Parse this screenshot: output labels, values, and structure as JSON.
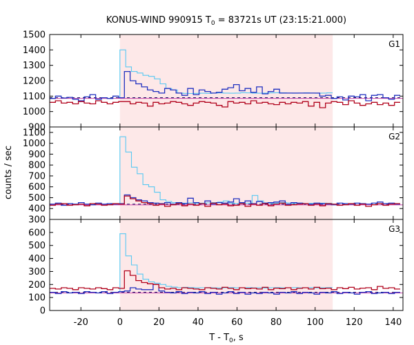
{
  "page": {
    "title_main": "KONUS-WIND 990915 T",
    "title_sub": "0",
    "title_rest": " = 83721s UT (23:15:21.000)"
  },
  "colors": {
    "shade": "#fde8e8",
    "cyan": "#57c8f2",
    "blue": "#1f2fbf",
    "red": "#b0001a",
    "magenta": "#cc44aa",
    "navy": "#1a1a66",
    "axis": "#000000"
  },
  "chart_data": {
    "type": "line",
    "title": "KONUS-WIND 990915 T0 = 83721s UT (23:15:21.000)",
    "xlabel": "T - T0, s",
    "xlabel_parts": {
      "main": "T - T",
      "sub": "0",
      "rest": ", s"
    },
    "ylabel": "counts / sec",
    "xlim": [
      -36,
      145
    ],
    "xticks": [
      -20,
      0,
      20,
      40,
      60,
      80,
      100,
      120,
      140
    ],
    "shaded_interval": [
      0,
      109
    ],
    "panels": [
      {
        "name": "G1",
        "ylim": [
          900,
          1500
        ],
        "yticks": [
          900,
          1000,
          1100,
          1200,
          1300,
          1400,
          1500
        ],
        "background_level": 1090,
        "series": [
          {
            "name": "cyan (high-res)",
            "color": "cyan",
            "x_start": 0,
            "bin": 2.944,
            "values": [
              1400,
              1290,
              1260,
              1250,
              1235,
              1228,
              1212,
              1180,
              1150,
              1140,
              1120,
              1118,
              1117,
              1118,
              1119,
              1118,
              1120,
              1121,
              1120,
              1119,
              1120,
              1122,
              1121,
              1120,
              1119,
              1120,
              1121,
              1122,
              1121,
              1120,
              1119,
              1120,
              1121,
              1120,
              1119,
              1120,
              1121
            ]
          },
          {
            "name": "blue",
            "color": "blue",
            "x_start": -36,
            "bin": 2.944,
            "values": [
              1085,
              1100,
              1088,
              1092,
              1080,
              1070,
              1095,
              1110,
              1080,
              1090,
              1085,
              1100,
              1090,
              1260,
              1200,
              1180,
              1160,
              1140,
              1130,
              1120,
              1150,
              1140,
              1120,
              1105,
              1150,
              1110,
              1140,
              1130,
              1120,
              1125,
              1145,
              1155,
              1175,
              1135,
              1150,
              1125,
              1160,
              1115,
              1130,
              1145,
              1120,
              1120,
              1120,
              1120,
              1120,
              1120,
              1120,
              1100,
              1105,
              1085,
              1095,
              1075,
              1100,
              1095,
              1110,
              1070,
              1105,
              1110,
              1090,
              1080,
              1105
            ]
          },
          {
            "name": "red",
            "color": "red",
            "x_start": -36,
            "bin": 2.944,
            "values": [
              1060,
              1070,
              1055,
              1060,
              1050,
              1065,
              1055,
              1050,
              1070,
              1060,
              1050,
              1060,
              1065,
              1065,
              1050,
              1060,
              1055,
              1035,
              1060,
              1050,
              1055,
              1065,
              1060,
              1050,
              1040,
              1055,
              1065,
              1060,
              1055,
              1040,
              1030,
              1065,
              1055,
              1060,
              1050,
              1070,
              1055,
              1060,
              1050,
              1045,
              1060,
              1050,
              1060,
              1055,
              1065,
              1035,
              1060,
              1025,
              1055,
              1065,
              1060,
              1045,
              1070,
              1055,
              1040,
              1050,
              1060,
              1045,
              1055,
              1040,
              1060
            ]
          }
        ]
      },
      {
        "name": "G2",
        "ylim": [
          300,
          1150
        ],
        "yticks": [
          300,
          400,
          500,
          600,
          700,
          800,
          900,
          1000,
          1100
        ],
        "background_level": 440,
        "series": [
          {
            "name": "cyan (high-res)",
            "color": "cyan",
            "x_start": 0,
            "bin": 2.944,
            "values": [
              1060,
              920,
              780,
              720,
              620,
              600,
              550,
              480,
              465,
              455,
              450,
              450,
              452,
              448,
              450,
              452,
              455,
              460,
              470,
              450,
              445,
              448,
              450,
              520,
              470,
              452,
              448,
              450,
              455,
              452,
              448,
              450,
              445,
              448,
              450,
              450,
              448
            ]
          },
          {
            "name": "blue",
            "color": "blue",
            "x_start": -36,
            "bin": 2.944,
            "values": [
              440,
              450,
              430,
              445,
              440,
              455,
              440,
              435,
              450,
              440,
              445,
              440,
              445,
              525,
              500,
              480,
              470,
              455,
              450,
              445,
              455,
              440,
              455,
              445,
              495,
              455,
              445,
              470,
              440,
              455,
              450,
              460,
              490,
              455,
              470,
              445,
              465,
              450,
              455,
              460,
              470,
              440,
              455,
              450,
              445,
              440,
              450,
              445,
              440,
              435,
              450,
              445,
              440,
              450,
              445,
              440,
              450,
              460,
              445,
              450,
              440
            ]
          },
          {
            "name": "red",
            "color": "red",
            "x_start": -36,
            "bin": 2.944,
            "values": [
              430,
              440,
              445,
              430,
              435,
              440,
              425,
              445,
              440,
              430,
              435,
              445,
              440,
              515,
              490,
              470,
              455,
              445,
              430,
              440,
              420,
              435,
              445,
              425,
              440,
              430,
              445,
              420,
              450,
              435,
              440,
              425,
              430,
              445,
              420,
              440,
              430,
              445,
              425,
              440,
              450,
              430,
              435,
              440,
              445,
              430,
              440,
              425,
              445,
              440,
              430,
              435,
              445,
              430,
              440,
              420,
              435,
              445,
              430,
              440,
              445
            ]
          }
        ]
      },
      {
        "name": "G3",
        "ylim": [
          0,
          700
        ],
        "yticks": [
          0,
          100,
          200,
          300,
          400,
          500,
          600
        ],
        "background_level": 140,
        "series": [
          {
            "name": "cyan (high-res)",
            "color": "cyan",
            "x_start": 0,
            "bin": 2.944,
            "values": [
              590,
              420,
              350,
              280,
              240,
              220,
              210,
              200,
              185,
              180,
              175,
              178,
              176,
              174,
              175,
              176,
              174,
              173,
              175,
              176,
              174,
              175,
              176,
              174,
              175,
              173,
              175,
              176,
              174,
              175,
              176,
              174,
              175,
              176,
              174,
              175,
              176
            ]
          },
          {
            "name": "blue",
            "color": "blue",
            "x_start": -36,
            "bin": 2.944,
            "values": [
              140,
              130,
              145,
              135,
              140,
              130,
              145,
              140,
              135,
              145,
              130,
              140,
              145,
              150,
              175,
              165,
              160,
              160,
              200,
              150,
              140,
              135,
              145,
              130,
              140,
              135,
              145,
              130,
              140,
              125,
              135,
              145,
              130,
              140,
              125,
              135,
              130,
              140,
              135,
              125,
              140,
              135,
              145,
              130,
              140,
              135,
              125,
              140,
              135,
              145,
              130,
              140,
              135,
              125,
              140,
              145,
              130,
              135,
              140,
              130,
              140
            ]
          },
          {
            "name": "red",
            "color": "red",
            "x_start": -36,
            "bin": 2.944,
            "values": [
              170,
              165,
              175,
              170,
              160,
              175,
              170,
              165,
              175,
              168,
              160,
              175,
              170,
              305,
              270,
              230,
              215,
              205,
              200,
              175,
              165,
              170,
              160,
              175,
              170,
              165,
              160,
              175,
              170,
              165,
              178,
              170,
              160,
              175,
              168,
              172,
              165,
              178,
              160,
              172,
              168,
              175,
              160,
              170,
              175,
              165,
              178,
              168,
              172,
              160,
              175,
              168,
              178,
              165,
              172,
              175,
              160,
              185,
              170,
              175,
              165
            ]
          }
        ]
      }
    ]
  }
}
